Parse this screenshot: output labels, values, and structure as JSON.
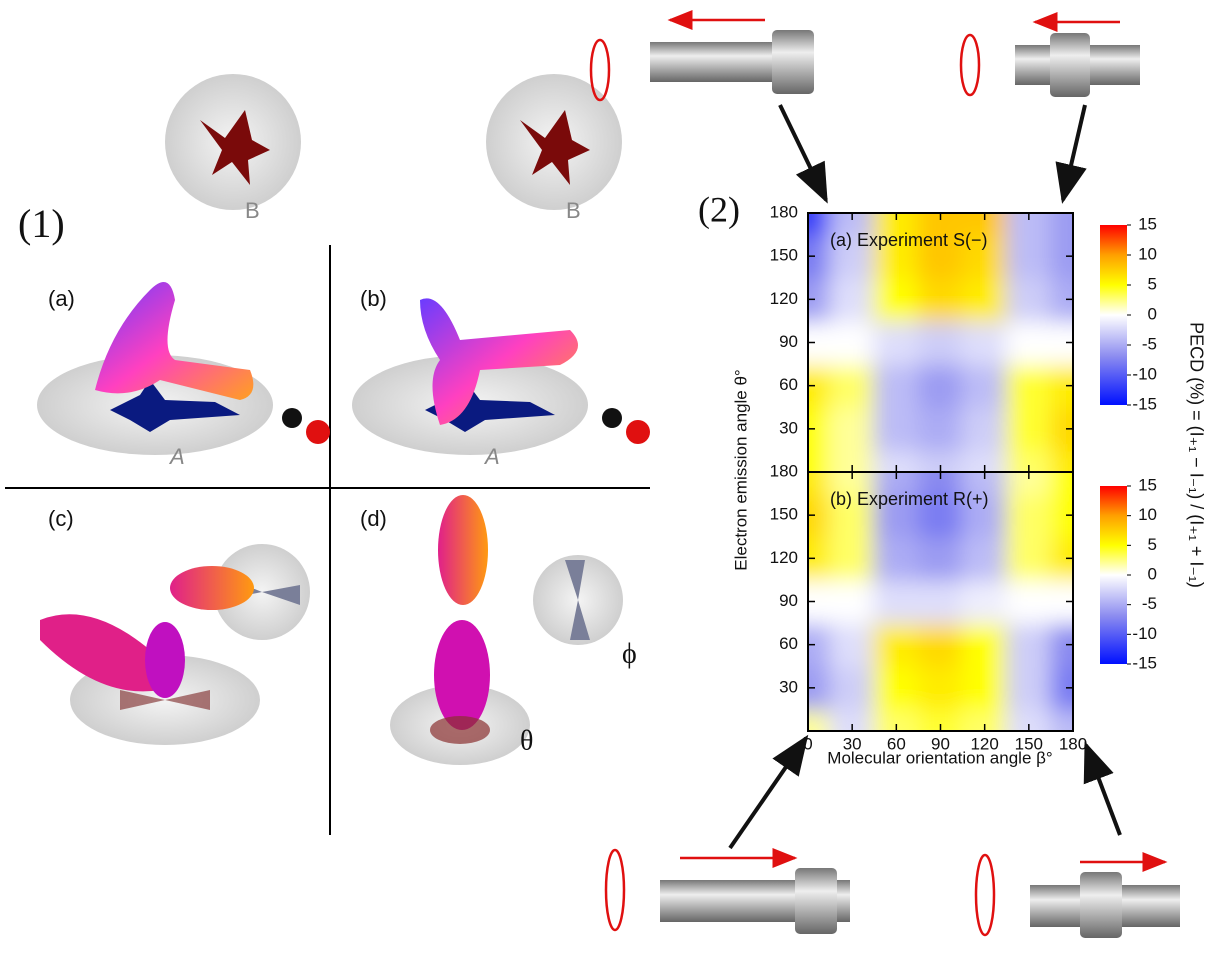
{
  "figure": {
    "part_labels": [
      "(1)",
      "(2)"
    ],
    "subpanel_labels": [
      "(a)",
      "(b)",
      "(c)",
      "(d)"
    ],
    "plane_labels": [
      "B",
      "A",
      "B",
      "A"
    ],
    "angle_labels": [
      "ϕ",
      "θ"
    ],
    "xlabel": "Molecular orientation angle β°",
    "ylabel": "Electron emission angle θ°",
    "colorbar_label": "PECD (%) = (I₊₁ − I₋₁) / (I₊₁ + I₋₁)"
  },
  "chart_data": [
    {
      "type": "heatmap",
      "title": "(a) Experiment S(−)",
      "x": [
        0,
        30,
        60,
        90,
        120,
        150,
        180
      ],
      "y": [
        0,
        30,
        60,
        90,
        120,
        150,
        180
      ],
      "z": [
        [
          5,
          2,
          -2,
          -3,
          -2,
          3,
          6
        ],
        [
          5,
          2,
          -4,
          -5,
          -3,
          4,
          7
        ],
        [
          6,
          3,
          -4,
          -6,
          -4,
          4,
          6
        ],
        [
          0,
          0,
          -2,
          -3,
          -2,
          0,
          0
        ],
        [
          -6,
          -2,
          5,
          7,
          6,
          -3,
          -5
        ],
        [
          -8,
          -3,
          6,
          8,
          7,
          -4,
          -6
        ],
        [
          -12,
          -4,
          6,
          8,
          8,
          -4,
          -6
        ]
      ],
      "xlim": [
        0,
        180
      ],
      "ylim": [
        0,
        180
      ],
      "xticks": [
        0,
        30,
        60,
        90,
        120,
        150,
        180
      ],
      "yticks": [
        30,
        60,
        90,
        120,
        150,
        180
      ],
      "clim": [
        -15,
        15
      ],
      "cticks": [
        15,
        10,
        5,
        0,
        -5,
        -10,
        -15
      ]
    },
    {
      "type": "heatmap",
      "title": "(b) Experiment R(+)",
      "x": [
        0,
        30,
        60,
        90,
        120,
        150,
        180
      ],
      "y": [
        0,
        30,
        60,
        90,
        120,
        150,
        180
      ],
      "z": [
        [
          2,
          -2,
          3,
          4,
          3,
          -2,
          -4
        ],
        [
          -6,
          -3,
          5,
          6,
          5,
          -3,
          -8
        ],
        [
          -5,
          -2,
          6,
          7,
          5,
          -3,
          -7
        ],
        [
          0,
          0,
          -2,
          -2,
          -1,
          0,
          0
        ],
        [
          6,
          3,
          -5,
          -6,
          -4,
          3,
          6
        ],
        [
          7,
          3,
          -6,
          -8,
          -5,
          3,
          5
        ],
        [
          6,
          2,
          -5,
          -7,
          -4,
          2,
          5
        ]
      ],
      "xlim": [
        0,
        180
      ],
      "ylim": [
        0,
        180
      ],
      "xticks": [
        0,
        30,
        60,
        90,
        120,
        150,
        180
      ],
      "yticks": [
        30,
        60,
        90,
        120,
        150,
        180
      ],
      "clim": [
        -15,
        15
      ],
      "cticks": [
        15,
        10,
        5,
        0,
        -5,
        -10,
        -15
      ]
    }
  ]
}
